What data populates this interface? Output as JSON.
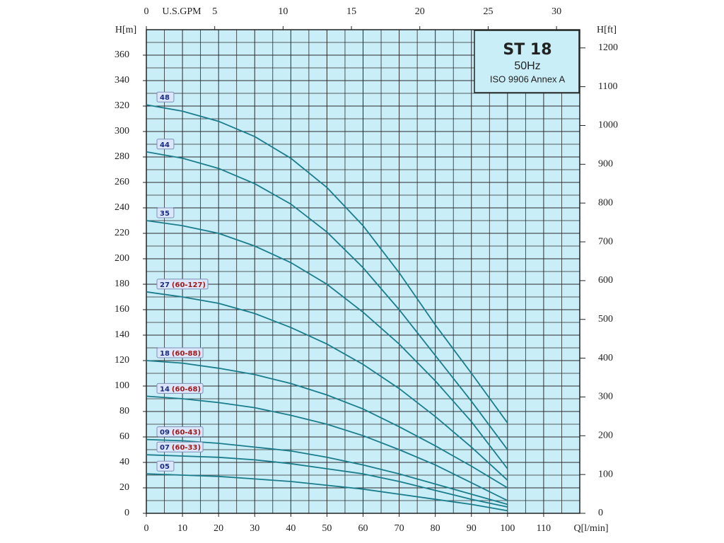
{
  "chart_data": {
    "type": "line",
    "x_label": "Q[l/min]",
    "y_label": "H[m]",
    "y2_label": "H[ft]",
    "x2_label": "U.S.GPM",
    "xlim": [
      0,
      120
    ],
    "xticks": [
      0,
      10,
      20,
      30,
      40,
      50,
      60,
      70,
      80,
      90,
      100,
      110
    ],
    "ylim": [
      0,
      380
    ],
    "yticks": [
      0,
      20,
      40,
      60,
      80,
      100,
      120,
      140,
      160,
      180,
      200,
      220,
      240,
      260,
      280,
      300,
      320,
      340,
      360
    ],
    "x2lim": [
      0,
      31.7
    ],
    "x2ticks": [
      0,
      5,
      10,
      15,
      20,
      25,
      30
    ],
    "y2lim": [
      0,
      1247
    ],
    "y2ticks": [
      0,
      100,
      200,
      300,
      400,
      500,
      600,
      700,
      800,
      900,
      1000,
      1100,
      1200
    ],
    "grid": true,
    "plot_background": "#c9eef8",
    "annotation": {
      "title": "ST 18",
      "frequency": "50Hz",
      "standard": "ISO 9906 Annex A"
    },
    "x": [
      0,
      10,
      20,
      30,
      40,
      50,
      60,
      70,
      80,
      90,
      100
    ],
    "series": [
      {
        "name": "48",
        "color": "#1b7d8c",
        "values": [
          321,
          316,
          308,
          296,
          279,
          256,
          226,
          189,
          148,
          110,
          71
        ]
      },
      {
        "name": "44",
        "color": "#1b7d8c",
        "values": [
          284,
          279,
          271,
          259,
          243,
          221,
          193,
          160,
          124,
          88,
          50
        ]
      },
      {
        "name": "35",
        "color": "#1b7d8c",
        "values": [
          230,
          226,
          220,
          210,
          197,
          180,
          158,
          133,
          104,
          72,
          35
        ]
      },
      {
        "name": "27",
        "range": "(60-127)",
        "color": "#1b7d8c",
        "values": [
          174,
          170,
          165,
          157,
          146,
          133,
          117,
          98,
          76,
          52,
          26
        ]
      },
      {
        "name": "18",
        "range": "(60-88)",
        "color": "#1b7d8c",
        "values": [
          120,
          118,
          114,
          109,
          102,
          93,
          82,
          68,
          53,
          37,
          20
        ]
      },
      {
        "name": "14",
        "range": "(60-68)",
        "color": "#1b7d8c",
        "values": [
          92,
          90,
          87,
          83,
          77,
          70,
          61,
          50,
          38,
          24,
          10
        ]
      },
      {
        "name": "09",
        "range": "(60-43)",
        "color": "#1b7d8c",
        "values": [
          58,
          57,
          55,
          52,
          49,
          44,
          38,
          31,
          23,
          15,
          7
        ]
      },
      {
        "name": "07",
        "range": "(60-33)",
        "color": "#1b7d8c",
        "values": [
          46,
          45,
          44,
          42,
          39,
          35,
          31,
          25,
          18,
          11,
          5
        ]
      },
      {
        "name": "05",
        "color": "#1b7d8c",
        "values": [
          31,
          30,
          29,
          27,
          25,
          22,
          19,
          15,
          11,
          7,
          2
        ]
      }
    ]
  }
}
